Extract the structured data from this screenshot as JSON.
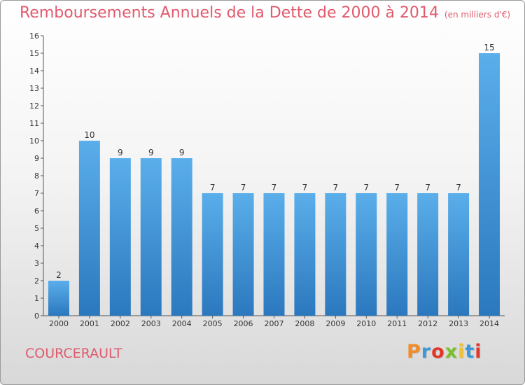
{
  "title": "Remboursements Annuels de la Dette de 2000 à 2014",
  "unit": "(en milliers d'€)",
  "location": "COURCERAULT",
  "logo": {
    "text": "Proxiti",
    "colors": [
      "#f28c28",
      "#3a9ad9",
      "#e2362a",
      "#7bbf2a",
      "#f2c12e",
      "#3a9ad9",
      "#e2362a"
    ]
  },
  "chart_data": {
    "type": "bar",
    "categories": [
      "2000",
      "2001",
      "2002",
      "2003",
      "2004",
      "2005",
      "2006",
      "2007",
      "2008",
      "2009",
      "2010",
      "2011",
      "2012",
      "2013",
      "2014"
    ],
    "values": [
      2,
      10,
      9,
      9,
      9,
      7,
      7,
      7,
      7,
      7,
      7,
      7,
      7,
      7,
      15
    ],
    "data_labels": [
      "2",
      "10",
      "9",
      "9",
      "9",
      "7",
      "7",
      "7",
      "7",
      "7",
      "7",
      "7",
      "7",
      "7",
      "15"
    ],
    "yticks": [
      "0",
      "1",
      "2",
      "3",
      "4",
      "5",
      "6",
      "7",
      "8",
      "9",
      "10",
      "11",
      "12",
      "13",
      "14",
      "15",
      "16"
    ],
    "ylim": [
      0,
      16
    ],
    "bar_color": "#3d8fd6",
    "grid": false
  }
}
